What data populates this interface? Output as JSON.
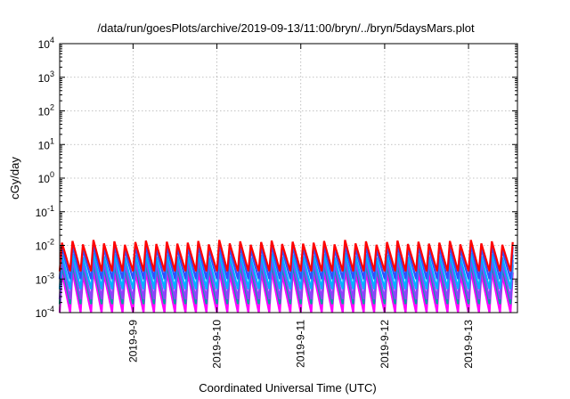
{
  "chart_data": {
    "type": "line",
    "title": "/data/run/goesPlots/archive/2019-09-13/11:00/bryn/../bryn/5daysMars.plot",
    "xlabel": "Coordinated Universal Time (UTC)",
    "ylabel": "cGy/day",
    "yscale": "log",
    "ylim": [
      0.0001,
      10000
    ],
    "xlim": [
      "2019-09-08T03:00",
      "2019-09-13T14:00"
    ],
    "grid": true,
    "x_ticks": [
      "2019-9-9",
      "2019-9-10",
      "2019-9-11",
      "2019-9-12",
      "2019-9-13"
    ],
    "y_ticks": [
      {
        "base": "10",
        "exp": "-4"
      },
      {
        "base": "10",
        "exp": "-3"
      },
      {
        "base": "10",
        "exp": "-2"
      },
      {
        "base": "10",
        "exp": "-1"
      },
      {
        "base": "10",
        "exp": "0"
      },
      {
        "base": "10",
        "exp": "1"
      },
      {
        "base": "10",
        "exp": "2"
      },
      {
        "base": "10",
        "exp": "3"
      },
      {
        "base": "10",
        "exp": "4"
      }
    ],
    "sawtooth_pattern": {
      "start": "2019-09-08T03:00",
      "end": "2019-09-13T14:00",
      "peak_spacing_hours": 3,
      "ramp_up_fraction": 0.22,
      "peak_log10_adjustments": [
        0.0,
        0.05,
        -0.05,
        0.08,
        -0.02,
        0.04,
        -0.06,
        0.02,
        0.06,
        -0.04,
        0.03,
        -0.03
      ]
    },
    "series": [
      {
        "color": "#ff00ff",
        "peak": 0.0015,
        "trough": 0.0001
      },
      {
        "color": "#00a0a0",
        "peak": 0.0025,
        "trough": 0.00018
      },
      {
        "color": "#9040ff",
        "peak": 0.0035,
        "trough": 0.00025
      },
      {
        "color": "#00b0ff",
        "peak": 0.005,
        "trough": 0.0005
      },
      {
        "color": "#3050ff",
        "peak": 0.0085,
        "trough": 0.001
      },
      {
        "color": "#ff0000",
        "peak": 0.012,
        "trough": 0.0017
      }
    ]
  }
}
